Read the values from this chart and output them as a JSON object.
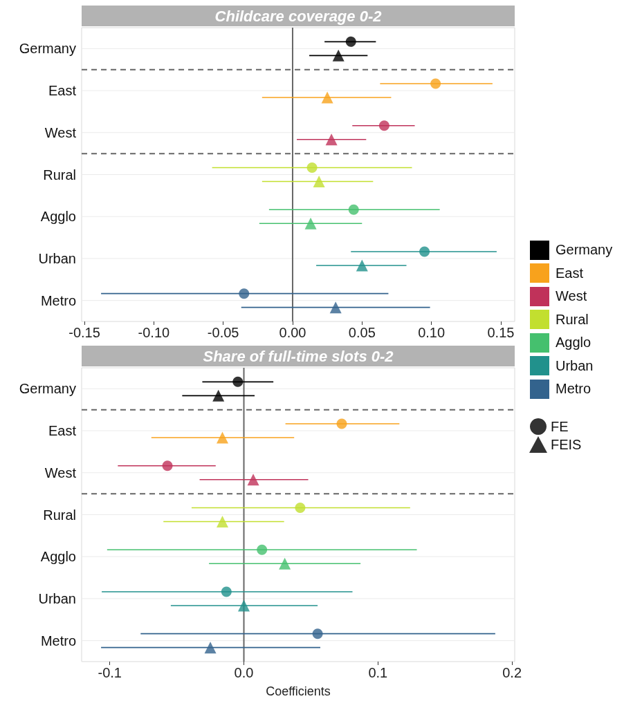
{
  "chart_data": [
    {
      "type": "scatter",
      "title": "Childcare coverage 0-2",
      "orientation": "horizontal",
      "categories": [
        "Germany",
        "East",
        "West",
        "Rural",
        "Agglo",
        "Urban",
        "Metro"
      ],
      "series": [
        {
          "marker": "circle",
          "colors": [
            "#000000",
            "#f8a21c",
            "#c0325a",
            "#c2df2f",
            "#45c06e",
            "#21918c",
            "#33638d"
          ],
          "values": [
            0.042,
            0.103,
            0.066,
            0.014,
            0.044,
            0.095,
            -0.035
          ],
          "errors": [
            [
              0.023,
              0.06
            ],
            [
              0.063,
              0.144
            ],
            [
              0.043,
              0.088
            ],
            [
              -0.058,
              0.086
            ],
            [
              -0.017,
              0.106
            ],
            [
              0.042,
              0.147
            ],
            [
              -0.138,
              0.069
            ]
          ]
        },
        {
          "marker": "triangle",
          "colors": [
            "#000000",
            "#f8a21c",
            "#c0325a",
            "#c2df2f",
            "#45c06e",
            "#21918c",
            "#33638d"
          ],
          "values": [
            0.033,
            0.025,
            0.028,
            0.019,
            0.013,
            0.05,
            0.031
          ],
          "errors": [
            [
              0.012,
              0.054
            ],
            [
              -0.022,
              0.071
            ],
            [
              0.003,
              0.053
            ],
            [
              -0.022,
              0.058
            ],
            [
              -0.024,
              0.05
            ],
            [
              0.017,
              0.082
            ],
            [
              -0.037,
              0.099
            ]
          ]
        }
      ],
      "xlim": [
        -0.152,
        0.16
      ],
      "xticks": [
        {
          "value": -0.15,
          "label": "-0.15"
        },
        {
          "value": -0.1,
          "label": "-0.10"
        },
        {
          "value": -0.05,
          "label": "-0.05"
        },
        {
          "value": 0,
          "label": "0.00"
        },
        {
          "value": 0.05,
          "label": "0.05"
        },
        {
          "value": 0.1,
          "label": "0.10"
        },
        {
          "value": 0.15,
          "label": "0.15"
        }
      ],
      "ref_lines": [
        {
          "axis": "x",
          "value": 0,
          "color": "#666666",
          "line_style": "solid"
        }
      ],
      "grid": "y"
    },
    {
      "type": "scatter",
      "title": "Share of full-time slots 0-2",
      "orientation": "horizontal",
      "xlabel": "Coefficients",
      "categories": [
        "Germany",
        "East",
        "West",
        "Rural",
        "Agglo",
        "Urban",
        "Metro"
      ],
      "series": [
        {
          "name": "FE",
          "marker": "circle",
          "colors": [
            "#000000",
            "#f8a21c",
            "#c0325a",
            "#c2df2f",
            "#45c06e",
            "#21918c",
            "#33638d"
          ],
          "values": [
            -0.0045,
            0.073,
            -0.057,
            0.042,
            0.0135,
            -0.013,
            0.055
          ],
          "errors": [
            [
              -0.031,
              0.022
            ],
            [
              0.031,
              0.116
            ],
            [
              -0.094,
              -0.021
            ],
            [
              -0.039,
              0.124
            ],
            [
              -0.102,
              0.129
            ],
            [
              -0.106,
              0.081
            ],
            [
              -0.077,
              0.1875
            ]
          ]
        },
        {
          "name": "FEIS",
          "marker": "triangle",
          "colors": [
            "#000000",
            "#f8a21c",
            "#c0325a",
            "#c2df2f",
            "#45c06e",
            "#21918c",
            "#33638d"
          ],
          "values": [
            -0.019,
            -0.016,
            0.007,
            -0.016,
            0.0305,
            0.0,
            -0.025
          ],
          "errors": [
            [
              -0.046,
              0.008
            ],
            [
              -0.069,
              0.0375
            ],
            [
              -0.033,
              0.048
            ],
            [
              -0.06,
              0.03
            ],
            [
              -0.026,
              0.087
            ],
            [
              -0.0545,
              0.055
            ],
            [
              -0.1065,
              0.057
            ]
          ]
        }
      ],
      "xlim": [
        -0.121,
        0.202
      ],
      "xticks": [
        {
          "value": -0.1,
          "label": "-0.1"
        },
        {
          "value": 0,
          "label": "0.0"
        },
        {
          "value": 0.1,
          "label": "0.1"
        },
        {
          "value": 0.2,
          "label": "0.2"
        }
      ],
      "ref_lines": [
        {
          "axis": "x",
          "value": 0,
          "color": "#666666",
          "line_style": "solid"
        }
      ],
      "grid": "y",
      "legend": "right"
    }
  ]
}
